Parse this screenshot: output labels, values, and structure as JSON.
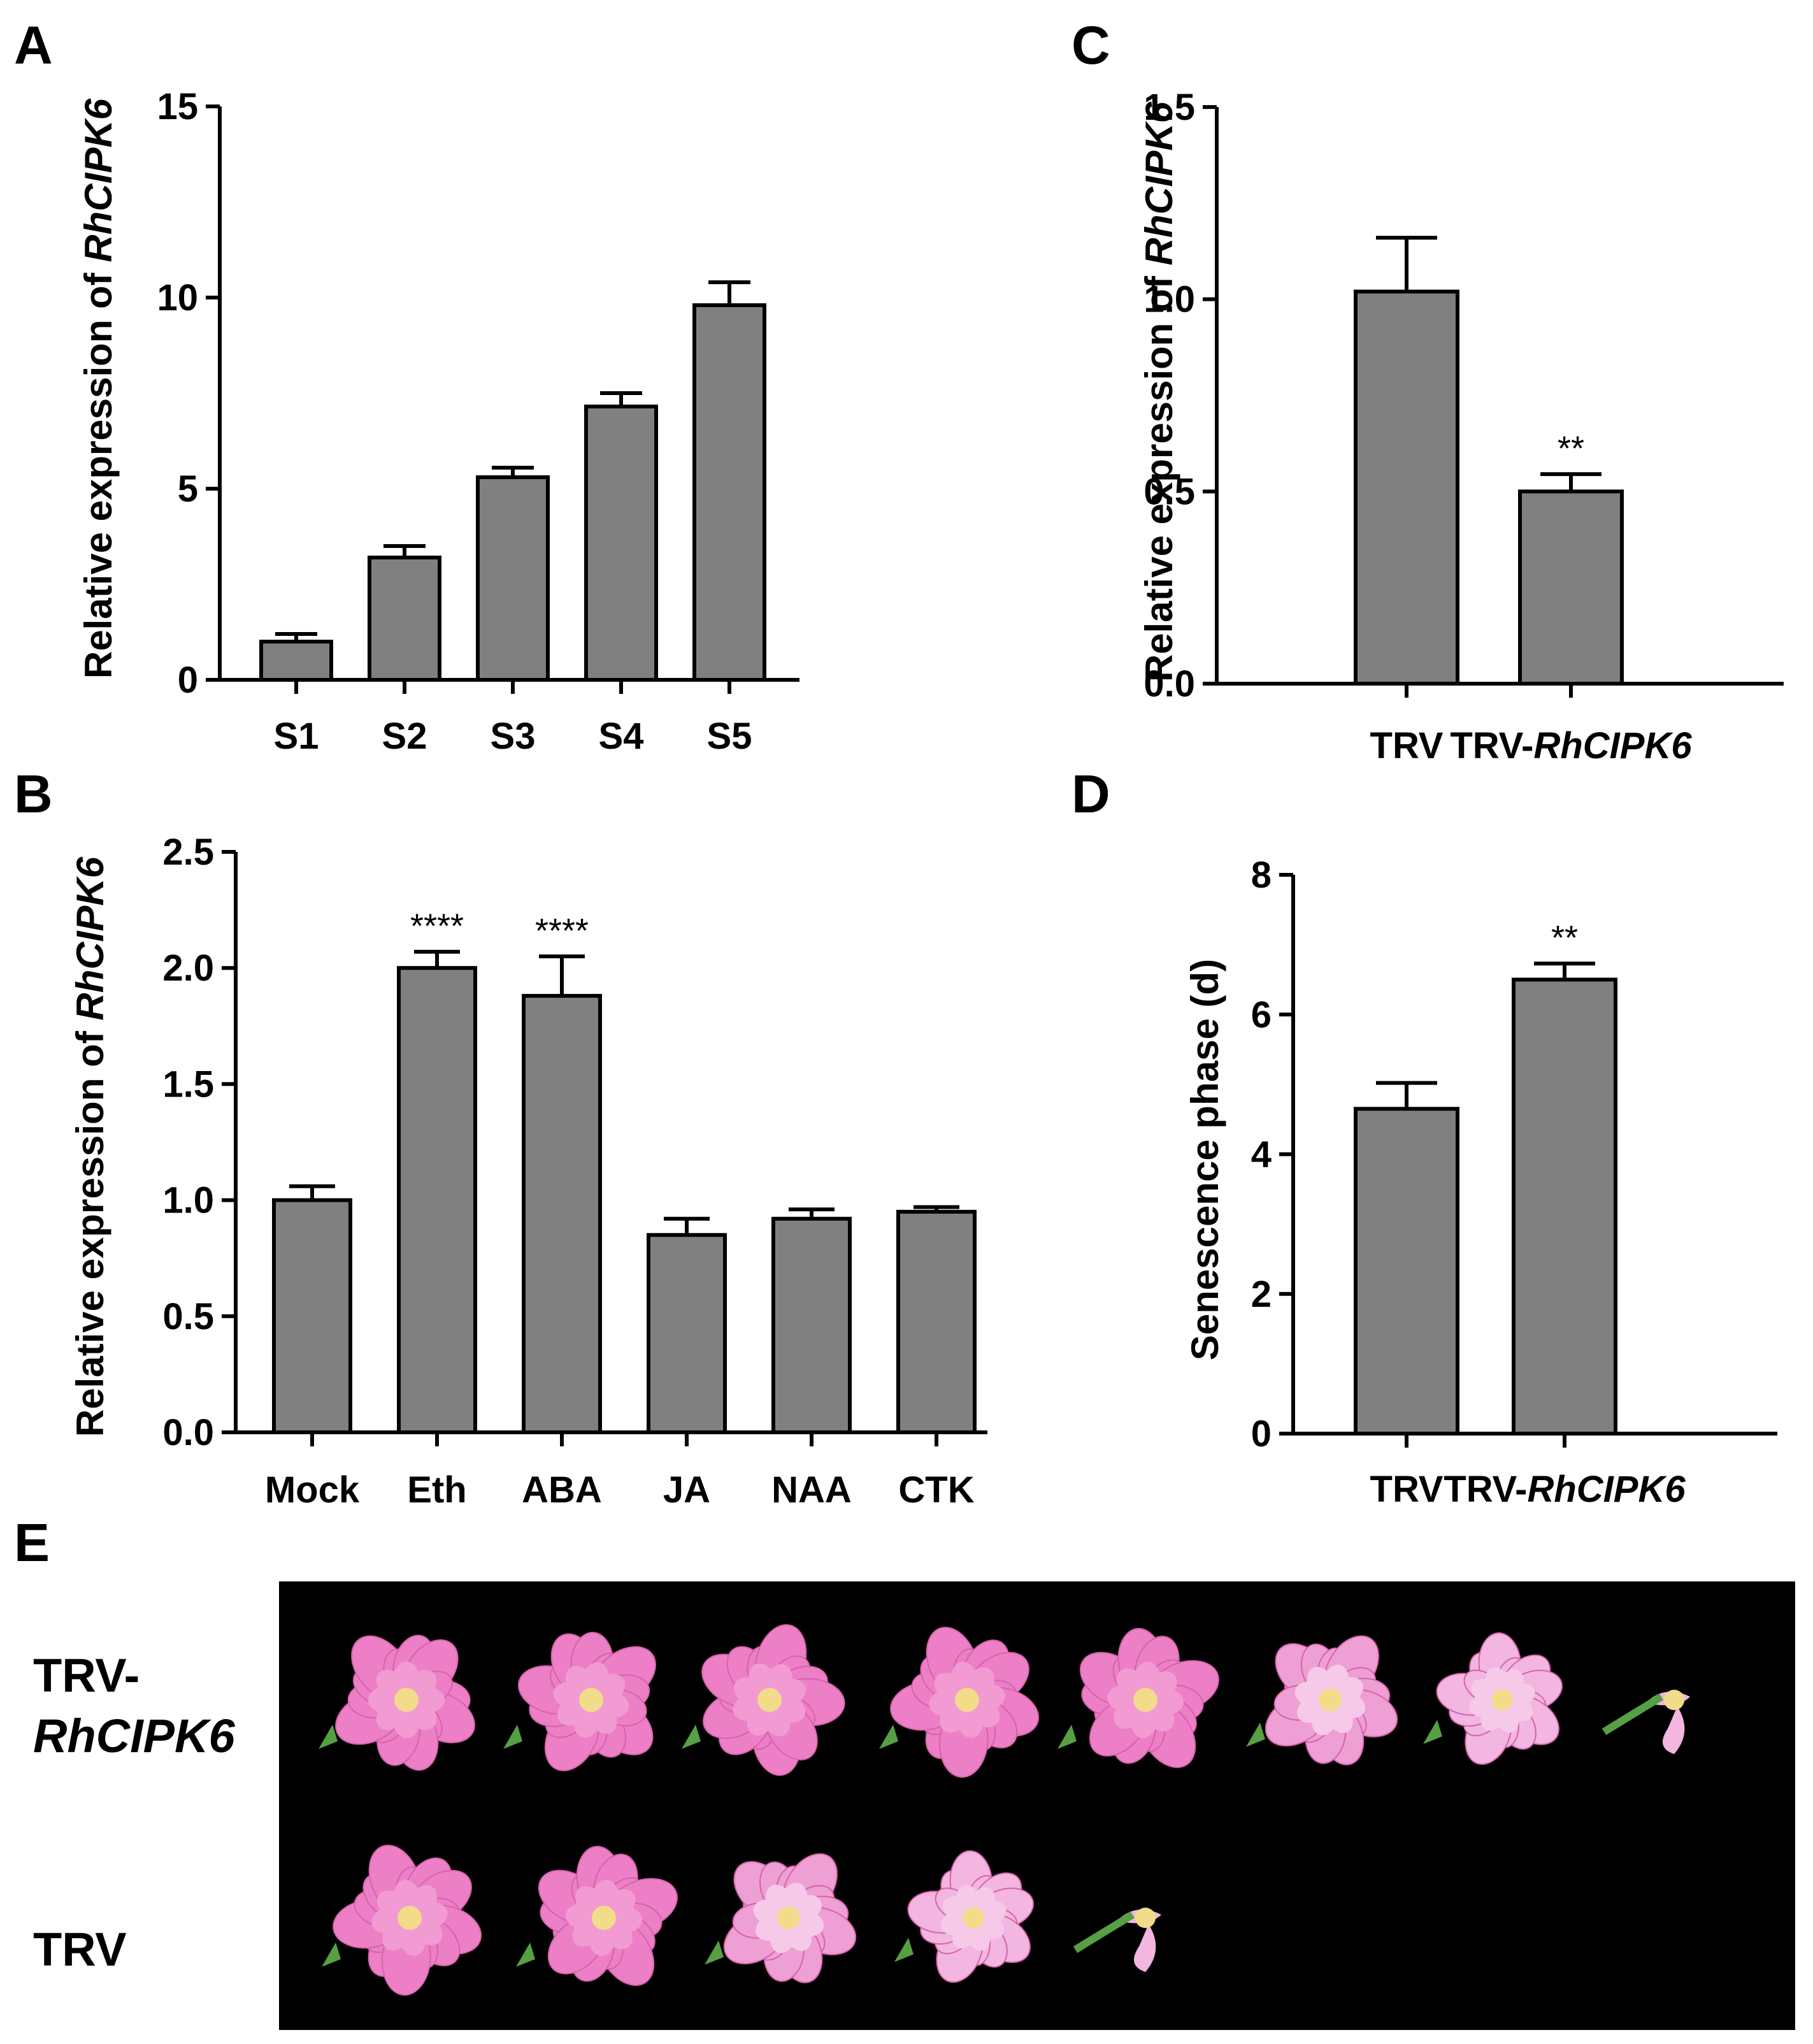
{
  "figure": {
    "panels": [
      "A",
      "B",
      "C",
      "D",
      "E"
    ]
  },
  "colors": {
    "bar": "#808080",
    "photo_background": "#000000",
    "petal": "#ec7fc6",
    "petal_light": "#f2b6e0",
    "center": "#f2dc8a",
    "leaf": "#56a043"
  },
  "chart_data": [
    {
      "panel": "A",
      "type": "bar",
      "categories": [
        "S1",
        "S2",
        "S3",
        "S4",
        "S5"
      ],
      "values": [
        1.0,
        3.2,
        5.3,
        7.15,
        9.8
      ],
      "errors": [
        0.2,
        0.3,
        0.25,
        0.35,
        0.6
      ],
      "significance": [
        "",
        "",
        "",
        "",
        ""
      ],
      "ylabel_prefix": "Relative expression of ",
      "ylabel_gene": "RhCIPK6",
      "ylim": [
        0,
        15
      ],
      "yticks": [
        0,
        5,
        10,
        15
      ],
      "ytick_labels": [
        "0",
        "5",
        "10",
        "15"
      ],
      "grid": false
    },
    {
      "panel": "B",
      "type": "bar",
      "categories": [
        "Mock",
        "Eth",
        "ABA",
        "JA",
        "NAA",
        "CTK"
      ],
      "values": [
        1.0,
        2.0,
        1.88,
        0.85,
        0.92,
        0.95
      ],
      "errors": [
        0.06,
        0.07,
        0.17,
        0.07,
        0.04,
        0.02
      ],
      "significance": [
        "",
        "****",
        "****",
        "",
        "",
        ""
      ],
      "ylabel_prefix": "Relative expression of ",
      "ylabel_gene": "RhCIPK6",
      "ylim": [
        0,
        2.5
      ],
      "yticks": [
        0,
        0.5,
        1.0,
        1.5,
        2.0,
        2.5
      ],
      "ytick_labels": [
        "0.0",
        "0.5",
        "1.0",
        "1.5",
        "2.0",
        "2.5"
      ],
      "grid": false
    },
    {
      "panel": "C",
      "type": "bar",
      "categories": [
        "TRV",
        "TRV-RhCIPK6"
      ],
      "category_parts": [
        [
          "TRV",
          ""
        ],
        [
          "TRV-",
          "RhCIPK6"
        ]
      ],
      "values": [
        1.02,
        0.5
      ],
      "errors": [
        0.14,
        0.045
      ],
      "significance": [
        "",
        "**"
      ],
      "ylabel_prefix": "Relative expression of ",
      "ylabel_gene": "RhCIPK6",
      "ylim": [
        0,
        1.5
      ],
      "yticks": [
        0,
        0.5,
        1.0,
        1.5
      ],
      "ytick_labels": [
        "0.0",
        "0.5",
        "1.0",
        "1.5"
      ],
      "grid": false
    },
    {
      "panel": "D",
      "type": "bar",
      "categories": [
        "TRV",
        "TRV-RhCIPK6"
      ],
      "category_parts": [
        [
          "TRV",
          ""
        ],
        [
          "TRV-",
          "RhCIPK6"
        ]
      ],
      "values": [
        4.65,
        6.5
      ],
      "errors": [
        0.37,
        0.23
      ],
      "significance": [
        "",
        "**"
      ],
      "ylabel_prefix": "Senescence phase (d)",
      "ylabel_gene": "",
      "ylim": [
        0,
        8
      ],
      "yticks": [
        0,
        2,
        4,
        6,
        8
      ],
      "ytick_labels": [
        "0",
        "2",
        "4",
        "6",
        "8"
      ],
      "grid": false
    }
  ],
  "photo_panel": {
    "panel": "E",
    "rows": [
      {
        "label_line1": "TRV-",
        "label_line2": "RhCIPK6",
        "flower_stages": [
          1,
          1,
          1,
          1,
          1,
          2,
          3,
          4
        ]
      },
      {
        "label_line1": "TRV",
        "label_line2": "",
        "flower_stages": [
          1,
          1,
          2,
          3,
          4
        ]
      }
    ]
  }
}
